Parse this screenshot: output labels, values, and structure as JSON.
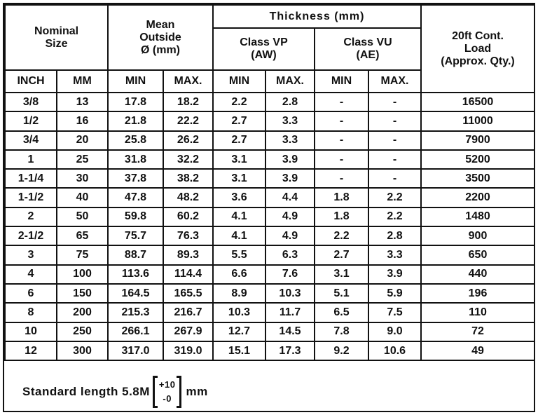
{
  "header": {
    "nominal_size": [
      "Nominal",
      "Size"
    ],
    "mean_outside": [
      "Mean",
      "Outside",
      "Ø (mm)"
    ],
    "thickness": "Thickness (mm)",
    "class_vp": [
      "Class VP",
      "(AW)"
    ],
    "class_vu": [
      "Class VU",
      "(AE)"
    ],
    "load": [
      "20ft Cont.",
      "Load",
      "(Approx. Qty.)"
    ]
  },
  "subheaders": [
    "INCH",
    "MM",
    "MIN",
    "MAX.",
    "MIN",
    "MAX.",
    "MIN",
    "MAX."
  ],
  "table": {
    "rows": [
      [
        "3/8",
        "13",
        "17.8",
        "18.2",
        "2.2",
        "2.8",
        "-",
        "-",
        "16500"
      ],
      [
        "1/2",
        "16",
        "21.8",
        "22.2",
        "2.7",
        "3.3",
        "-",
        "-",
        "11000"
      ],
      [
        "3/4",
        "20",
        "25.8",
        "26.2",
        "2.7",
        "3.3",
        "-",
        "-",
        "7900"
      ],
      [
        "1",
        "25",
        "31.8",
        "32.2",
        "3.1",
        "3.9",
        "-",
        "-",
        "5200"
      ],
      [
        "1-1/4",
        "30",
        "37.8",
        "38.2",
        "3.1",
        "3.9",
        "-",
        "-",
        "3500"
      ],
      [
        "1-1/2",
        "40",
        "47.8",
        "48.2",
        "3.6",
        "4.4",
        "1.8",
        "2.2",
        "2200"
      ],
      [
        "2",
        "50",
        "59.8",
        "60.2",
        "4.1",
        "4.9",
        "1.8",
        "2.2",
        "1480"
      ],
      [
        "2-1/2",
        "65",
        "75.7",
        "76.3",
        "4.1",
        "4.9",
        "2.2",
        "2.8",
        "900"
      ],
      [
        "3",
        "75",
        "88.7",
        "89.3",
        "5.5",
        "6.3",
        "2.7",
        "3.3",
        "650"
      ],
      [
        "4",
        "100",
        "113.6",
        "114.4",
        "6.6",
        "7.6",
        "3.1",
        "3.9",
        "440"
      ],
      [
        "6",
        "150",
        "164.5",
        "165.5",
        "8.9",
        "10.3",
        "5.1",
        "5.9",
        "196"
      ],
      [
        "8",
        "200",
        "215.3",
        "216.7",
        "10.3",
        "11.7",
        "6.5",
        "7.5",
        "110"
      ],
      [
        "10",
        "250",
        "266.1",
        "267.9",
        "12.7",
        "14.5",
        "7.8",
        "9.0",
        "72"
      ],
      [
        "12",
        "300",
        "317.0",
        "319.0",
        "15.1",
        "17.3",
        "9.2",
        "10.6",
        "49"
      ]
    ]
  },
  "footer": {
    "text": "Standard length 5.8M",
    "plus": "+10",
    "minus": "-0",
    "unit": "mm"
  }
}
